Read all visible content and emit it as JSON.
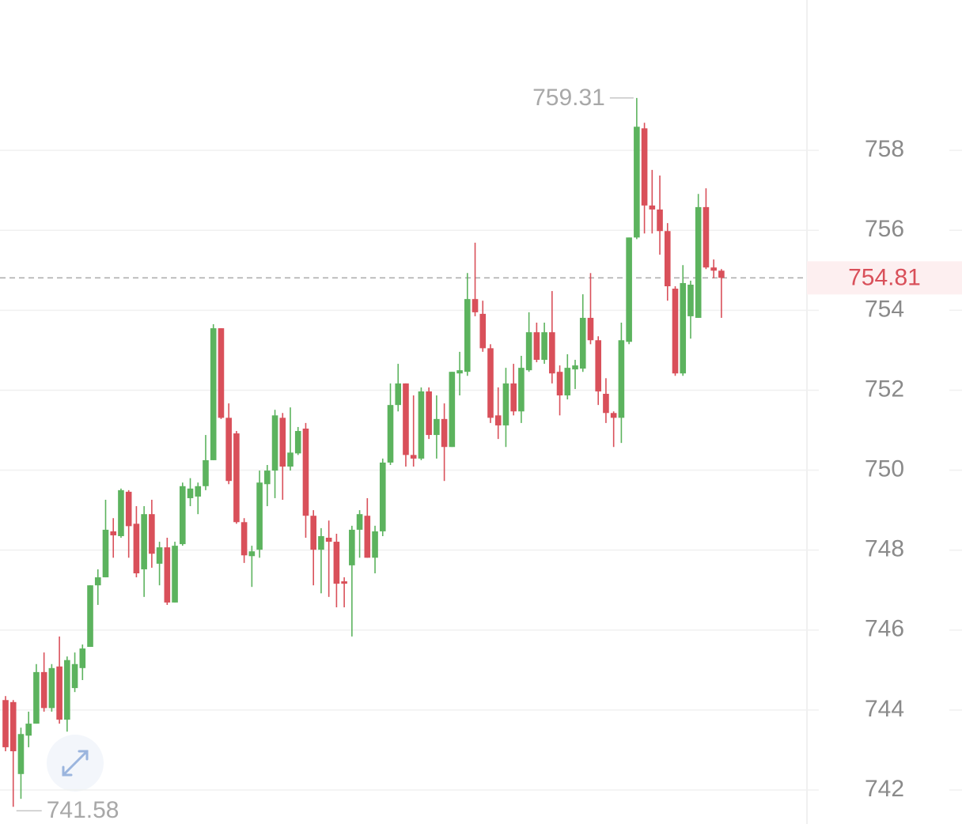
{
  "chart_data": {
    "type": "candlestick",
    "open": [
      744.25,
      744.2,
      742.4,
      743.36,
      743.66,
      744.95,
      744.05,
      745.09,
      743.76,
      744.55,
      745.05,
      745.58,
      747.12,
      747.32,
      748.47,
      748.35,
      749.46,
      748.66,
      747.52,
      748.9,
      747.66,
      748.07,
      746.69,
      748.15,
      749.3,
      749.34,
      749.6,
      750.25,
      753.55,
      751.31,
      750.92,
      748.7,
      747.85,
      748.01,
      749.65,
      749.99,
      751.31,
      750.09,
      750.42,
      751.04,
      748.86,
      748.01,
      748.31,
      748.21,
      747.22,
      747.62,
      748.51,
      748.86,
      747.81,
      748.47,
      750.19,
      751.63,
      752.17,
      750.38,
      750.29,
      751.97,
      750.88,
      751.28,
      750.58,
      752.42,
      752.46,
      754.28,
      753.91,
      753.05,
      751.37,
      751.12,
      752.17,
      751.47,
      752.5,
      753.45,
      752.76,
      753.45,
      752.46,
      751.87,
      752.52,
      752.54,
      753.81,
      753.25,
      751.91,
      751.43,
      751.31,
      753.21,
      755.82,
      758.55,
      756.62,
      756.52,
      755.98,
      754.54,
      752.42,
      753.85,
      753.81,
      756.58,
      755.07,
      754.99
    ],
    "high": [
      744.35,
      744.25,
      743.56,
      743.96,
      745.15,
      745.44,
      745.15,
      745.84,
      745.34,
      745.44,
      745.64,
      747.12,
      747.52,
      749.26,
      748.8,
      749.54,
      749.5,
      749.1,
      749.1,
      749.26,
      748.21,
      748.31,
      748.21,
      749.69,
      749.8,
      749.69,
      750.88,
      753.65,
      753.55,
      751.67,
      750.98,
      748.8,
      748.11,
      749.99,
      750.13,
      751.51,
      751.43,
      751.57,
      751.08,
      751.18,
      749.0,
      748.55,
      748.74,
      748.41,
      747.32,
      748.61,
      749.0,
      749.3,
      748.61,
      750.29,
      752.17,
      752.66,
      752.17,
      751.87,
      752.07,
      752.07,
      751.87,
      751.67,
      752.46,
      752.96,
      754.93,
      755.69,
      754.24,
      753.15,
      752.07,
      752.56,
      752.66,
      752.86,
      753.95,
      753.69,
      753.69,
      754.48,
      752.62,
      752.9,
      752.76,
      754.4,
      754.93,
      753.35,
      752.3,
      751.47,
      753.69,
      755.82,
      759.31,
      758.69,
      757.51,
      757.37,
      756.18,
      754.6,
      755.13,
      754.74,
      756.91,
      757.05,
      755.27,
      755.03
    ],
    "low": [
      742.97,
      741.58,
      741.78,
      743.07,
      743.66,
      743.96,
      743.96,
      743.66,
      743.46,
      744.45,
      744.75,
      745.58,
      746.63,
      747.32,
      747.81,
      748.31,
      747.81,
      747.32,
      746.83,
      747.56,
      747.12,
      746.63,
      746.69,
      748.11,
      749.1,
      748.9,
      749.5,
      750.25,
      751.28,
      749.65,
      748.66,
      747.68,
      747.08,
      747.81,
      749.1,
      749.3,
      749.26,
      749.99,
      750.38,
      748.31,
      747.12,
      746.92,
      746.83,
      746.57,
      746.57,
      745.84,
      747.81,
      747.81,
      747.42,
      748.35,
      750.13,
      751.47,
      750.09,
      750.09,
      750.25,
      750.78,
      750.29,
      749.73,
      750.58,
      751.87,
      752.36,
      753.85,
      752.96,
      751.18,
      750.78,
      750.58,
      751.37,
      751.18,
      752.46,
      752.7,
      752.66,
      752.17,
      751.37,
      751.77,
      752.03,
      752.46,
      753.15,
      751.63,
      751.18,
      750.58,
      750.68,
      753.15,
      755.78,
      755.92,
      755.92,
      755.39,
      754.24,
      752.36,
      752.36,
      753.29,
      753.81,
      755.03,
      754.8,
      753.81
    ],
    "close": [
      743.07,
      742.97,
      743.4,
      743.66,
      744.95,
      744.05,
      745.05,
      743.76,
      745.25,
      745.15,
      745.54,
      747.12,
      747.32,
      748.51,
      748.37,
      749.5,
      748.6,
      747.42,
      748.9,
      747.91,
      748.07,
      746.69,
      748.11,
      749.6,
      749.54,
      749.6,
      750.25,
      753.55,
      751.31,
      749.73,
      748.7,
      747.87,
      747.97,
      749.69,
      749.99,
      751.37,
      750.09,
      750.44,
      750.98,
      748.86,
      748.01,
      748.35,
      748.21,
      747.16,
      747.16,
      748.51,
      748.9,
      747.81,
      748.47,
      750.19,
      751.63,
      752.17,
      750.38,
      750.29,
      751.97,
      750.88,
      751.28,
      750.58,
      752.46,
      752.5,
      754.28,
      753.95,
      753.05,
      751.31,
      751.12,
      752.17,
      751.47,
      752.56,
      753.45,
      752.76,
      753.45,
      752.42,
      751.87,
      752.56,
      752.62,
      753.81,
      753.25,
      751.97,
      751.43,
      751.31,
      753.25,
      755.82,
      758.59,
      756.62,
      756.52,
      755.98,
      754.6,
      752.42,
      754.68,
      754.64,
      756.58,
      755.07,
      754.99,
      754.81
    ],
    "up_color": "#5cb35e",
    "down_color": "#d9505a",
    "ylim": [
      741.15,
      761.76
    ],
    "yticks": [
      742,
      744,
      746,
      748,
      750,
      752,
      754,
      756,
      758
    ],
    "grid": true,
    "high_label": 759.31,
    "low_label": 741.58,
    "last_price": 754.81,
    "last_price_color": "#d9505a"
  }
}
